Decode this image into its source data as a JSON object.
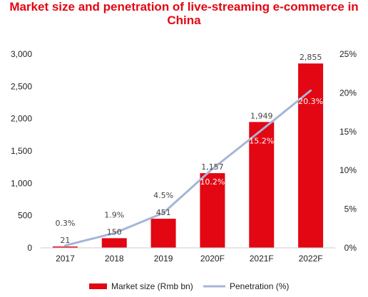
{
  "chart_data": {
    "type": "bar",
    "title": "Market size and penetration of live-streaming e-commerce in China",
    "categories": [
      "2017",
      "2018",
      "2019",
      "2020F",
      "2021F",
      "2022F"
    ],
    "series": [
      {
        "name": "Market size (Rmb bn)",
        "type": "bar",
        "axis": "left",
        "color": "#e30613",
        "values": [
          21,
          150,
          451,
          1157,
          1949,
          2855
        ],
        "labels": [
          "21",
          "150",
          "451",
          "1,157",
          "1,949",
          "2,855"
        ]
      },
      {
        "name": "Penetration (%)",
        "type": "line",
        "axis": "right",
        "color": "#a7b4d6",
        "values": [
          0.3,
          1.9,
          4.5,
          10.2,
          15.2,
          20.3
        ],
        "labels": [
          "0.3%",
          "1.9%",
          "4.5%",
          "10.2%",
          "15.2%",
          "20.3%"
        ]
      }
    ],
    "y_left": {
      "ylim": [
        0,
        3000
      ],
      "ticks": [
        0,
        500,
        1000,
        1500,
        2000,
        2500,
        3000
      ],
      "tick_labels": [
        "0",
        "500",
        "1,000",
        "1,500",
        "2,000",
        "2,500",
        "3,000"
      ]
    },
    "y_right": {
      "ylim": [
        0,
        25
      ],
      "ticks": [
        0,
        5,
        10,
        15,
        20,
        25
      ],
      "tick_labels": [
        "0%",
        "5%",
        "10%",
        "15%",
        "20%",
        "25%"
      ]
    },
    "grid": false,
    "legend_position": "bottom"
  }
}
